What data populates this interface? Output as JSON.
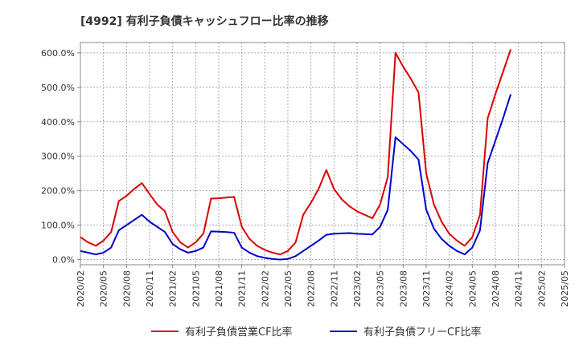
{
  "chart_data": {
    "type": "line",
    "title": "[4992]  有利子負債キャッシュフロー比率の推移",
    "xlabel": "",
    "ylabel": "",
    "ylim": [
      -15,
      630
    ],
    "y_ticks": [
      "0.0%",
      "100.0%",
      "200.0%",
      "300.0%",
      "400.0%",
      "500.0%",
      "600.0%"
    ],
    "y_tick_values": [
      0,
      100,
      200,
      300,
      400,
      500,
      600
    ],
    "x_ticks": [
      "2020/02",
      "2020/05",
      "2020/08",
      "2020/11",
      "2021/02",
      "2021/05",
      "2021/08",
      "2021/11",
      "2022/02",
      "2022/05",
      "2022/08",
      "2022/11",
      "2023/02",
      "2023/05",
      "2023/08",
      "2023/11",
      "2024/02",
      "2024/05",
      "2024/08",
      "2024/11",
      "2025/02",
      "2025/05"
    ],
    "grid": true,
    "legend_position": "bottom",
    "series": [
      {
        "name": "有利子負債営業CF比率",
        "color": "#dd0000",
        "values": [
          65,
          50,
          40,
          55,
          80,
          170,
          185,
          205,
          222,
          190,
          160,
          140,
          80,
          50,
          35,
          50,
          75,
          177,
          178,
          180,
          182,
          95,
          60,
          40,
          28,
          20,
          15,
          25,
          50,
          130,
          165,
          205,
          260,
          205,
          175,
          155,
          140,
          130,
          120,
          160,
          240,
          600,
          560,
          525,
          485,
          250,
          160,
          110,
          75,
          55,
          40,
          65,
          130,
          410,
          480,
          545,
          610
        ]
      },
      {
        "name": "有利子負債フリーCF比率",
        "color": "#0000cc",
        "values": [
          25,
          20,
          15,
          20,
          35,
          85,
          100,
          115,
          130,
          110,
          95,
          80,
          45,
          30,
          20,
          25,
          35,
          82,
          81,
          80,
          78,
          35,
          20,
          10,
          5,
          2,
          0,
          2,
          10,
          25,
          40,
          55,
          72,
          75,
          76,
          77,
          75,
          74,
          73,
          95,
          145,
          355,
          335,
          315,
          290,
          145,
          90,
          60,
          40,
          25,
          15,
          35,
          85,
          280,
          345,
          410,
          480
        ]
      }
    ]
  }
}
